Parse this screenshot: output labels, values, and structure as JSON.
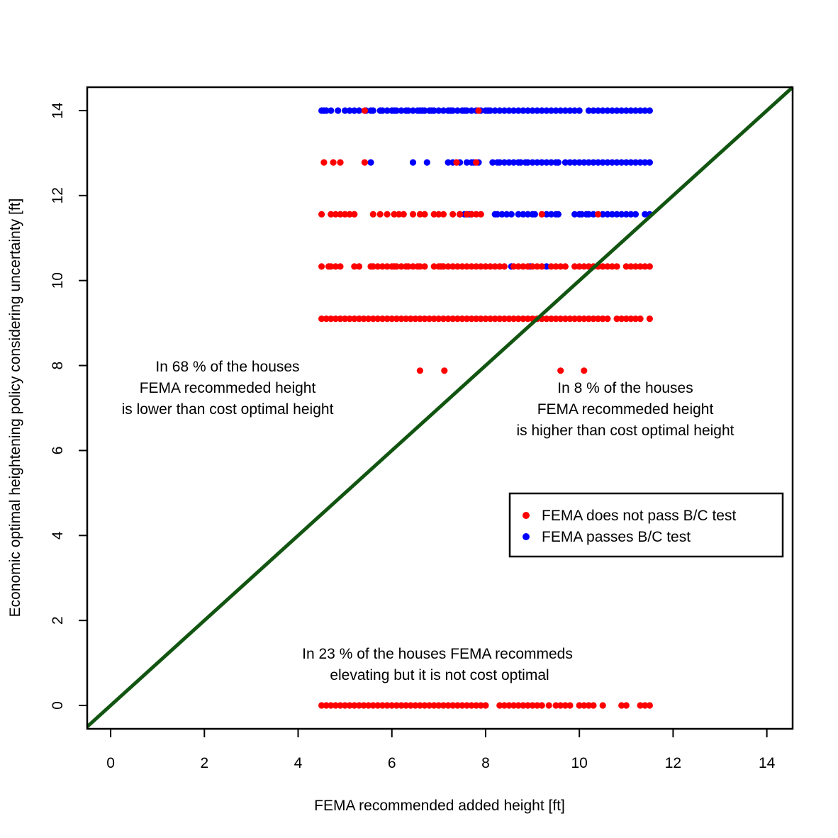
{
  "chart_data": {
    "type": "scatter",
    "title": "",
    "xlabel": "FEMA recommended added height [ft]",
    "ylabel": "Economic optimal heightening policy considering uncertainty [ft]",
    "xlim": [
      -0.5,
      14.55
    ],
    "ylim": [
      -0.55,
      14.55
    ],
    "xticks": [
      "0",
      "2",
      "4",
      "6",
      "8",
      "10",
      "12",
      "14"
    ],
    "yticks": [
      "0",
      "2",
      "4",
      "6",
      "8",
      "10",
      "12",
      "14"
    ],
    "grid": false,
    "reference_line": {
      "from": [
        -0.5,
        -0.5
      ],
      "to": [
        14.55,
        14.55
      ],
      "color": "#115511"
    },
    "colors": {
      "not_pass": "#ff0000",
      "pass": "#0000ff"
    },
    "legend": {
      "position": "right",
      "entries": [
        {
          "label": "FEMA does not pass B/C test",
          "color": "#ff0000"
        },
        {
          "label": "FEMA passes B/C test",
          "color": "#0000ff"
        }
      ]
    },
    "annotations": [
      {
        "lines": [
          "In 68 % of the houses",
          "FEMA recommeded height",
          "is lower than cost optimal height"
        ]
      },
      {
        "lines": [
          "In 8 % of the houses",
          "FEMA recommeded height",
          "is higher than cost optimal height"
        ]
      },
      {
        "lines": [
          "In 23 % of the houses FEMA recommeds",
          "elevating but it is not cost optimal"
        ]
      }
    ],
    "series": [
      {
        "color": "#0000ff",
        "groups": [
          {
            "y": 14.0,
            "x": [
              4.5,
              4.55,
              4.6,
              4.7,
              4.85,
              5.0,
              5.1,
              5.2,
              5.3,
              5.45,
              5.55,
              5.6,
              5.75,
              5.8,
              5.9,
              6.0,
              6.05,
              6.1,
              6.2,
              6.3,
              6.35,
              6.45,
              6.55,
              6.6,
              6.65,
              6.7,
              6.8,
              6.85,
              6.9,
              7.0,
              7.1,
              7.2,
              7.25,
              7.3,
              7.4,
              7.5,
              7.55,
              7.6,
              7.7,
              7.8,
              7.9,
              8.0,
              8.05,
              8.1,
              8.2,
              8.3,
              8.4,
              8.5,
              8.6,
              8.7,
              8.8,
              8.9,
              9.0,
              9.1,
              9.2,
              9.3,
              9.4,
              9.5,
              9.6,
              9.7,
              9.8,
              9.9,
              10.0,
              10.2,
              10.3,
              10.4,
              10.5,
              10.6,
              10.7,
              10.8,
              10.9,
              11.0,
              11.1,
              11.2,
              11.3,
              11.4,
              11.5
            ]
          },
          {
            "y": 12.78,
            "x": [
              5.55,
              6.45,
              6.75,
              7.2,
              7.3,
              7.45,
              7.6,
              7.7,
              7.75,
              7.85,
              8.15,
              8.25,
              8.3,
              8.4,
              8.5,
              8.6,
              8.7,
              8.75,
              8.85,
              8.9,
              9.0,
              9.1,
              9.2,
              9.3,
              9.4,
              9.5,
              9.55,
              9.7,
              9.8,
              9.9,
              10.0,
              10.1,
              10.2,
              10.3,
              10.4,
              10.5,
              10.6,
              10.7,
              10.8,
              10.9,
              11.0,
              11.1,
              11.2,
              11.3,
              11.4,
              11.5
            ]
          },
          {
            "y": 11.56,
            "x": [
              7.45,
              7.55,
              7.6,
              7.65,
              7.7,
              8.2,
              8.25,
              8.35,
              8.45,
              8.55,
              8.7,
              8.8,
              8.9,
              9.0,
              9.05,
              9.3,
              9.4,
              9.5,
              9.55,
              9.9,
              10.0,
              10.05,
              10.15,
              10.2,
              10.3,
              10.5,
              10.6,
              10.7,
              10.8,
              10.9,
              11.0,
              11.1,
              11.2,
              11.4,
              11.5
            ]
          },
          {
            "y": 10.33,
            "x": [
              8.55,
              8.95,
              9.3
            ]
          }
        ]
      },
      {
        "color": "#ff0000",
        "groups": [
          {
            "y": 14.0,
            "x": [
              5.42,
              7.85
            ]
          },
          {
            "y": 12.78,
            "x": [
              4.55,
              4.75,
              4.9,
              5.42,
              7.38,
              7.8
            ]
          },
          {
            "y": 11.56,
            "x": [
              4.5,
              4.7,
              4.8,
              4.9,
              5.0,
              5.1,
              5.2,
              5.6,
              5.75,
              5.9,
              6.05,
              6.15,
              6.25,
              6.45,
              6.6,
              6.7,
              6.9,
              7.0,
              7.1,
              7.3,
              7.45,
              7.6,
              7.7,
              7.8,
              7.9,
              9.2,
              10.4
            ]
          },
          {
            "y": 10.33,
            "x": [
              4.5,
              4.65,
              4.7,
              4.8,
              4.9,
              5.2,
              5.3,
              5.55,
              5.6,
              5.7,
              5.8,
              5.9,
              6.0,
              6.05,
              6.1,
              6.2,
              6.3,
              6.35,
              6.45,
              6.55,
              6.6,
              6.7,
              6.9,
              7.0,
              7.05,
              7.1,
              7.2,
              7.3,
              7.4,
              7.5,
              7.6,
              7.7,
              7.8,
              7.9,
              8.0,
              8.1,
              8.2,
              8.3,
              8.4,
              8.6,
              8.7,
              8.8,
              8.9,
              9.0,
              9.1,
              9.2,
              9.4,
              9.5,
              9.6,
              9.7,
              9.9,
              10.0,
              10.1,
              10.2,
              10.3,
              10.4,
              10.5,
              10.6,
              10.7,
              10.8,
              11.0,
              11.1,
              11.2,
              11.3,
              11.4,
              11.5
            ]
          },
          {
            "y": 9.1,
            "x": [
              4.5,
              4.6,
              4.7,
              4.8,
              4.9,
              5.0,
              5.1,
              5.2,
              5.3,
              5.4,
              5.5,
              5.6,
              5.7,
              5.8,
              5.9,
              6.0,
              6.1,
              6.2,
              6.3,
              6.4,
              6.5,
              6.6,
              6.7,
              6.8,
              6.9,
              7.0,
              7.1,
              7.2,
              7.3,
              7.4,
              7.5,
              7.6,
              7.7,
              7.8,
              7.9,
              8.0,
              8.1,
              8.2,
              8.3,
              8.4,
              8.5,
              8.6,
              8.7,
              8.8,
              8.9,
              9.0,
              9.1,
              9.2,
              9.3,
              9.4,
              9.5,
              9.6,
              9.7,
              9.8,
              9.9,
              10.0,
              10.1,
              10.2,
              10.3,
              10.4,
              10.5,
              10.6,
              10.8,
              10.9,
              11.0,
              11.1,
              11.2,
              11.3,
              11.5
            ]
          },
          {
            "y": 7.88,
            "x": [
              6.6,
              7.12,
              9.6,
              10.1
            ]
          },
          {
            "y": 0.0,
            "x": [
              4.5,
              4.6,
              4.7,
              4.8,
              4.9,
              5.0,
              5.1,
              5.2,
              5.3,
              5.4,
              5.5,
              5.6,
              5.7,
              5.8,
              5.9,
              6.0,
              6.1,
              6.2,
              6.3,
              6.4,
              6.5,
              6.6,
              6.7,
              6.8,
              6.9,
              7.0,
              7.1,
              7.2,
              7.3,
              7.4,
              7.5,
              7.6,
              7.7,
              7.8,
              7.9,
              8.0,
              8.3,
              8.4,
              8.5,
              8.6,
              8.7,
              8.8,
              8.9,
              9.0,
              9.1,
              9.2,
              9.35,
              9.5,
              9.6,
              9.7,
              9.8,
              10.0,
              10.1,
              10.2,
              10.3,
              10.5,
              10.9,
              11.0,
              11.3,
              11.4,
              11.5
            ]
          }
        ]
      }
    ]
  }
}
